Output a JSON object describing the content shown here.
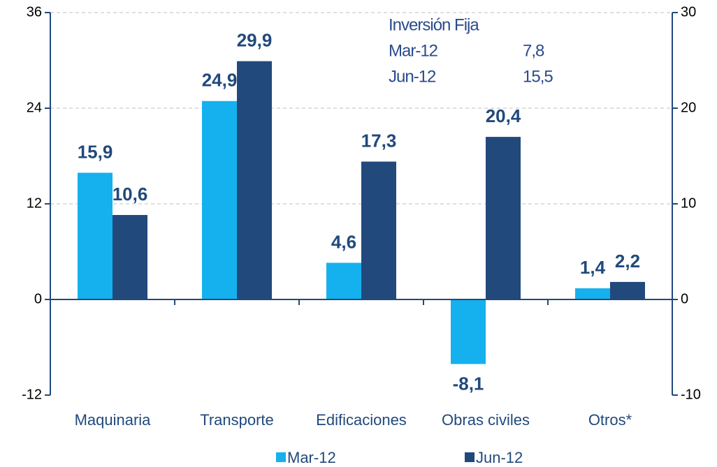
{
  "chart_data": {
    "type": "bar",
    "categories": [
      "Maquinaria",
      "Transporte",
      "Edificaciones",
      "Obras civiles",
      "Otros*"
    ],
    "series": [
      {
        "name": "Mar-12",
        "color": "#14b1ee",
        "values": [
          15.9,
          24.9,
          4.6,
          -8.1,
          1.4
        ],
        "value_labels": [
          "15,9",
          "24,9",
          "4,6",
          "-8,1",
          "1,4"
        ]
      },
      {
        "name": "Jun-12",
        "color": "#21497c",
        "values": [
          10.6,
          29.9,
          17.3,
          20.4,
          2.2
        ],
        "value_labels": [
          "10,6",
          "29,9",
          "17,3",
          "20,4",
          "2,2"
        ]
      }
    ],
    "ylim": [
      -12,
      36
    ],
    "yticks": [
      -12,
      0,
      12,
      24,
      36
    ],
    "y2lim": [
      -10,
      30
    ],
    "y2ticks": [
      -10,
      0,
      10,
      20,
      30
    ],
    "grid": true,
    "legend": "bottom",
    "annotation": {
      "title": "Inversión Fija",
      "rows": [
        [
          "Mar-12",
          "7,8"
        ],
        [
          "Jun-12",
          "15,5"
        ]
      ]
    }
  }
}
